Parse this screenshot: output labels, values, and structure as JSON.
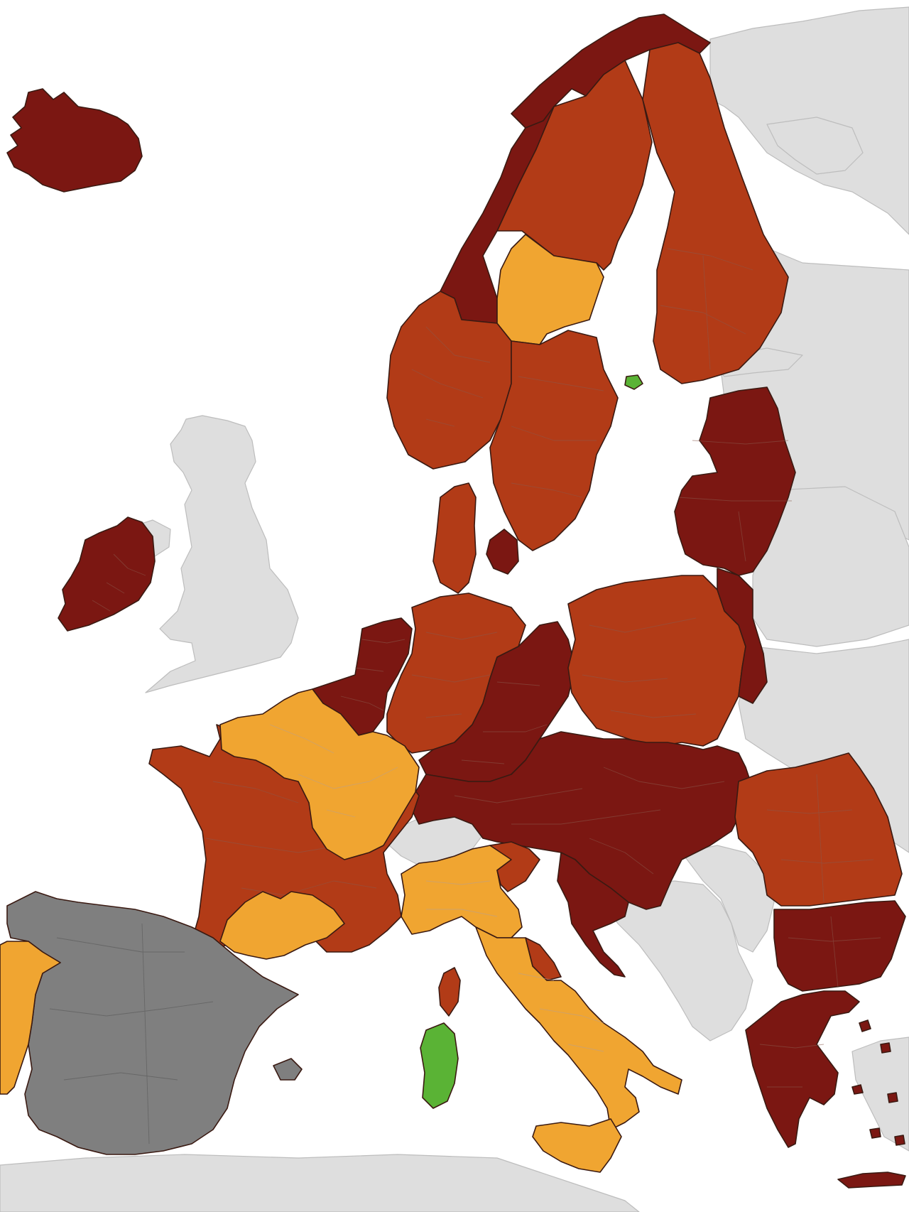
{
  "map": {
    "colors": {
      "sea": "#ffffff",
      "non_eu": "#dedede",
      "dark_red": "#7b1712",
      "red": "#b23b17",
      "orange": "#f0a531",
      "green": "#5ab335",
      "grey": "#7f7f7f"
    },
    "regions": [
      {
        "name": "iceland",
        "category": "dark_red"
      },
      {
        "name": "ireland",
        "category": "dark_red"
      },
      {
        "name": "norway-north",
        "category": "dark_red"
      },
      {
        "name": "norway-south",
        "category": "red"
      },
      {
        "name": "norway-west",
        "category": "dark_red"
      },
      {
        "name": "sweden-north",
        "category": "red"
      },
      {
        "name": "sweden-central",
        "category": "orange"
      },
      {
        "name": "sweden-south",
        "category": "red"
      },
      {
        "name": "finland",
        "category": "red"
      },
      {
        "name": "aland",
        "category": "green"
      },
      {
        "name": "estonia-latvia-lithuania",
        "category": "dark_red"
      },
      {
        "name": "denmark",
        "category": "red"
      },
      {
        "name": "zealand",
        "category": "dark_red"
      },
      {
        "name": "benelux",
        "category": "dark_red"
      },
      {
        "name": "germany-west",
        "category": "red"
      },
      {
        "name": "germany-east",
        "category": "dark_red"
      },
      {
        "name": "poland",
        "category": "red"
      },
      {
        "name": "poland-east",
        "category": "dark_red"
      },
      {
        "name": "central-europe",
        "category": "dark_red"
      },
      {
        "name": "france-west",
        "category": "red"
      },
      {
        "name": "france-north-east",
        "category": "orange"
      },
      {
        "name": "france-south",
        "category": "orange"
      },
      {
        "name": "italy-north",
        "category": "orange"
      },
      {
        "name": "italy-south",
        "category": "orange"
      },
      {
        "name": "sicily",
        "category": "orange"
      },
      {
        "name": "sardinia",
        "category": "green"
      },
      {
        "name": "corsica",
        "category": "red"
      },
      {
        "name": "portugal",
        "category": "orange"
      },
      {
        "name": "spain",
        "category": "grey"
      },
      {
        "name": "romania",
        "category": "red"
      },
      {
        "name": "bulgaria",
        "category": "dark_red"
      },
      {
        "name": "greece",
        "category": "dark_red"
      },
      {
        "name": "croatia",
        "category": "dark_red"
      }
    ]
  }
}
